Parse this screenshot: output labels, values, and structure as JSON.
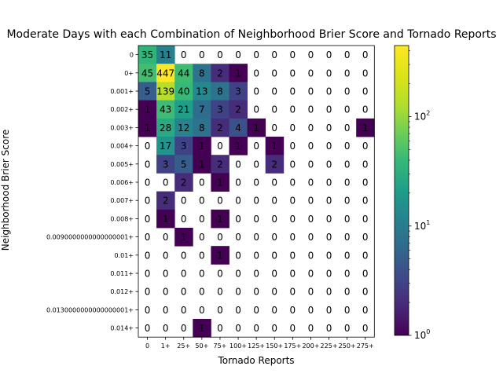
{
  "chart_data": {
    "type": "heatmap",
    "title": "Moderate Days with each Combination of Neighborhood Brier Score and Tornado Reports",
    "xlabel": "Tornado Reports",
    "ylabel": "Neighborhood Brier Score",
    "x_categories": [
      "0",
      "1+",
      "25+",
      "50+",
      "75+",
      "100+",
      "125+",
      "150+",
      "175+",
      "200+",
      "225+",
      "250+",
      "275+"
    ],
    "y_categories": [
      "0",
      "0+",
      "0.001+",
      "0.002+",
      "0.003+",
      "0.004+",
      "0.005+",
      "0.006+",
      "0.007+",
      "0.008+",
      "0.0090000000000000001+",
      "0.01+",
      "0.011+",
      "0.012+",
      "0.0130000000000000001+",
      "0.014+"
    ],
    "values": [
      [
        35,
        11,
        0,
        0,
        0,
        0,
        0,
        0,
        0,
        0,
        0,
        0,
        0
      ],
      [
        45,
        447,
        44,
        8,
        2,
        1,
        0,
        0,
        0,
        0,
        0,
        0,
        0
      ],
      [
        5,
        139,
        40,
        13,
        8,
        3,
        0,
        0,
        0,
        0,
        0,
        0,
        0
      ],
      [
        1,
        43,
        21,
        7,
        3,
        2,
        0,
        0,
        0,
        0,
        0,
        0,
        0
      ],
      [
        1,
        28,
        12,
        8,
        2,
        4,
        1,
        0,
        0,
        0,
        0,
        0,
        1
      ],
      [
        0,
        17,
        3,
        1,
        0,
        1,
        0,
        1,
        0,
        0,
        0,
        0,
        0
      ],
      [
        0,
        3,
        5,
        1,
        2,
        0,
        0,
        2,
        0,
        0,
        0,
        0,
        0
      ],
      [
        0,
        0,
        2,
        0,
        1,
        0,
        0,
        0,
        0,
        0,
        0,
        0,
        0
      ],
      [
        0,
        2,
        0,
        0,
        0,
        0,
        0,
        0,
        0,
        0,
        0,
        0,
        0
      ],
      [
        0,
        1,
        0,
        0,
        1,
        0,
        0,
        0,
        0,
        0,
        0,
        0,
        0
      ],
      [
        0,
        0,
        1,
        0,
        0,
        0,
        0,
        0,
        0,
        0,
        0,
        0,
        0
      ],
      [
        0,
        0,
        0,
        0,
        1,
        0,
        0,
        0,
        0,
        0,
        0,
        0,
        0
      ],
      [
        0,
        0,
        0,
        0,
        0,
        0,
        0,
        0,
        0,
        0,
        0,
        0,
        0
      ],
      [
        0,
        0,
        0,
        0,
        0,
        0,
        0,
        0,
        0,
        0,
        0,
        0,
        0
      ],
      [
        0,
        0,
        0,
        0,
        0,
        0,
        0,
        0,
        0,
        0,
        0,
        0,
        0
      ],
      [
        0,
        0,
        0,
        1,
        0,
        0,
        0,
        0,
        0,
        0,
        0,
        0,
        0
      ]
    ],
    "colormap": "viridis",
    "color_scale": "log",
    "color_range": [
      1,
      447
    ],
    "colorbar_ticks": [
      {
        "value": 1,
        "label": "10^0"
      },
      {
        "value": 10,
        "label": "10^1"
      },
      {
        "value": 100,
        "label": "10^2"
      }
    ],
    "grid": false
  }
}
